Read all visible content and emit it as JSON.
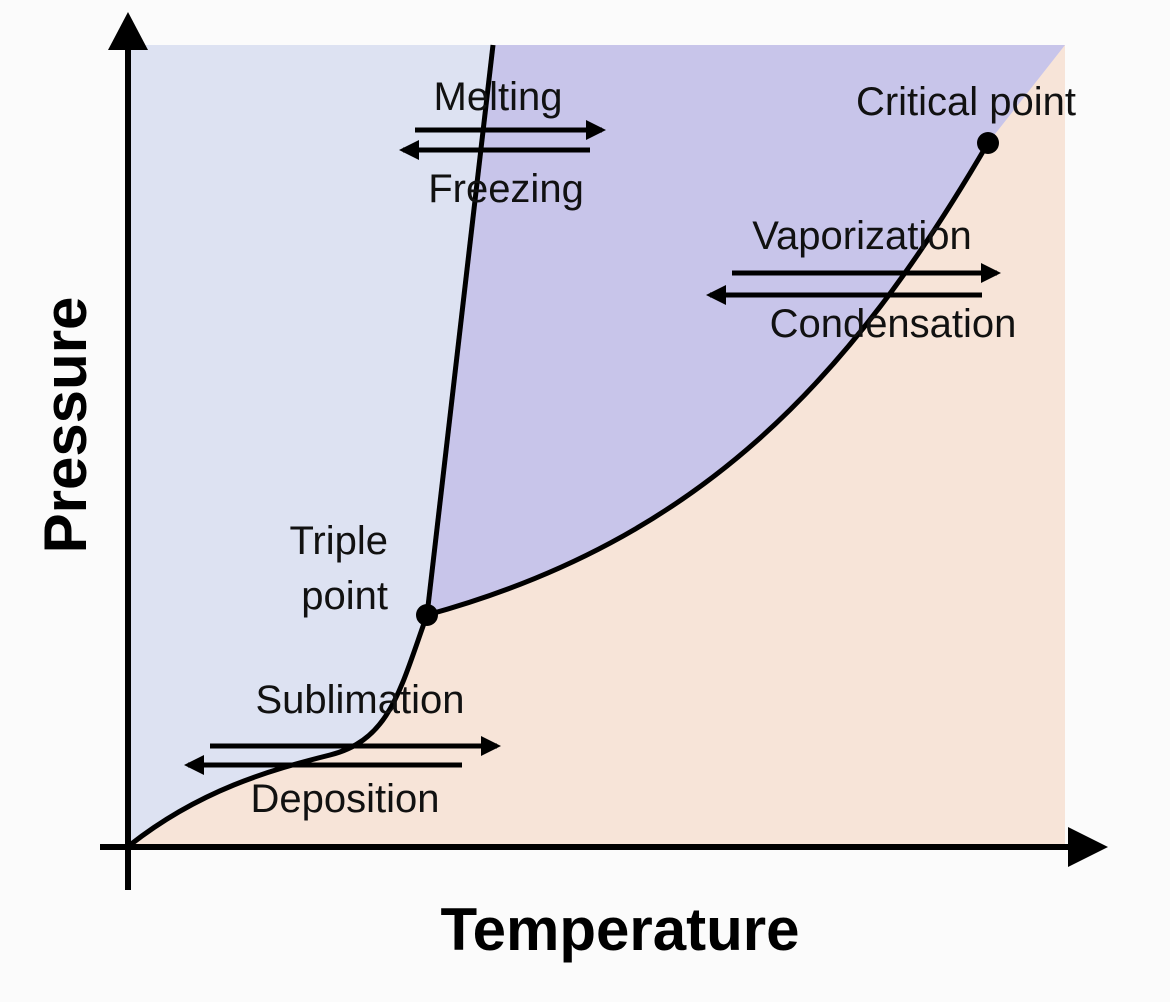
{
  "axes": {
    "y_label": "Pressure",
    "x_label": "Temperature"
  },
  "points": {
    "triple_point": [
      "Triple",
      "point"
    ],
    "critical_point": "Critical point"
  },
  "transitions": {
    "solid_liquid": {
      "forward": "Melting",
      "reverse": "Freezing"
    },
    "liquid_gas": {
      "forward": "Vaporization",
      "reverse": "Condensation"
    },
    "solid_gas": {
      "forward": "Sublimation",
      "reverse": "Deposition"
    }
  }
}
